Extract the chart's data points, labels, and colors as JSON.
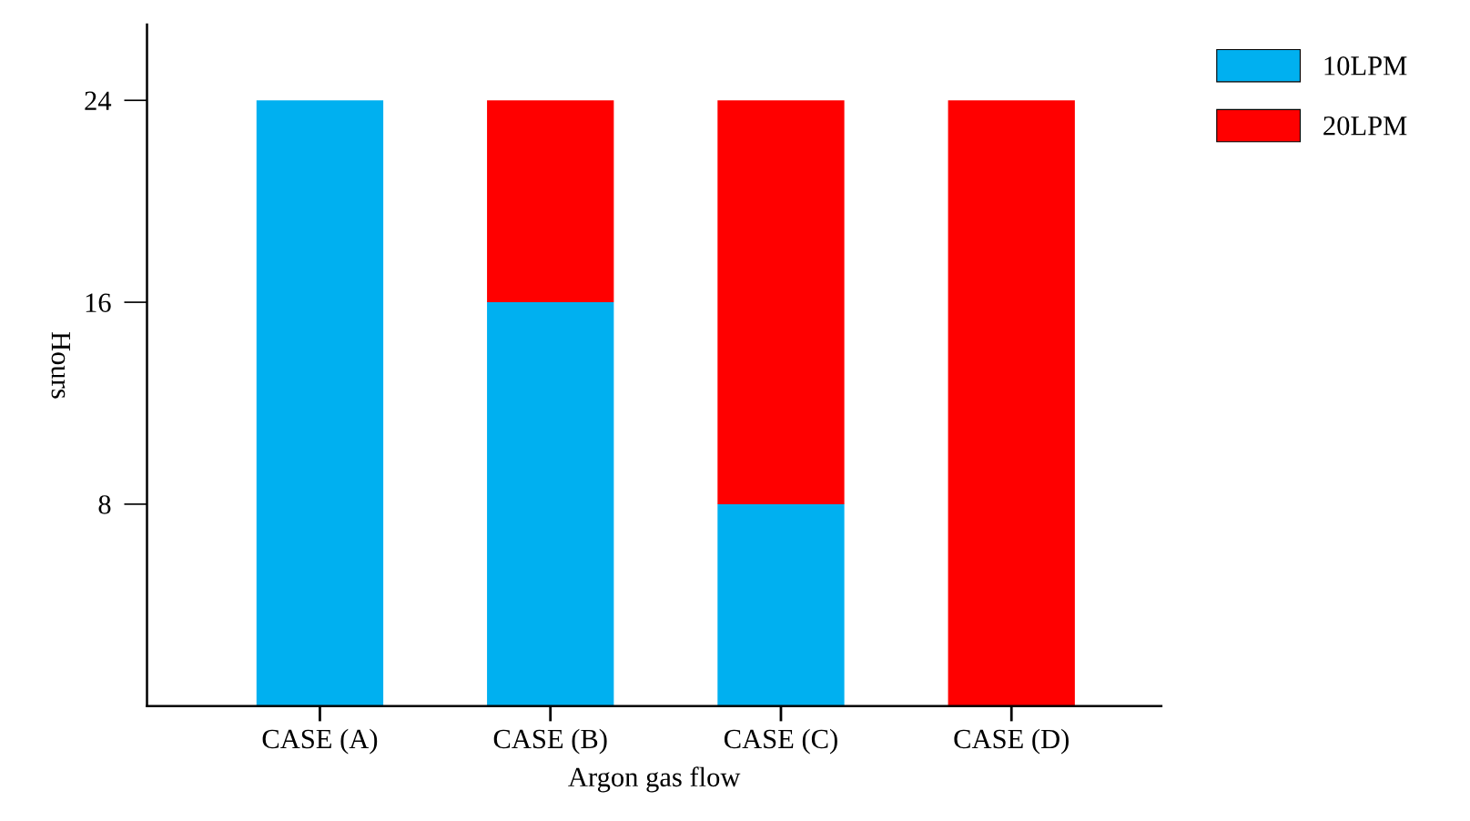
{
  "chart_data": {
    "type": "bar",
    "stacked": true,
    "xlabel": "Argon gas flow",
    "ylabel": "Hours",
    "categories": [
      "CASE (A)",
      "CASE (B)",
      "CASE (C)",
      "CASE (D)"
    ],
    "series": [
      {
        "name": "10LPM",
        "color": "#00b0f0",
        "values": [
          24,
          16,
          8,
          0
        ]
      },
      {
        "name": "20LPM",
        "color": "#ff0000",
        "values": [
          0,
          8,
          16,
          24
        ]
      }
    ],
    "ylim": [
      0,
      27
    ],
    "yticks": [
      8,
      16,
      24
    ],
    "grid": false,
    "legend": "top right"
  }
}
